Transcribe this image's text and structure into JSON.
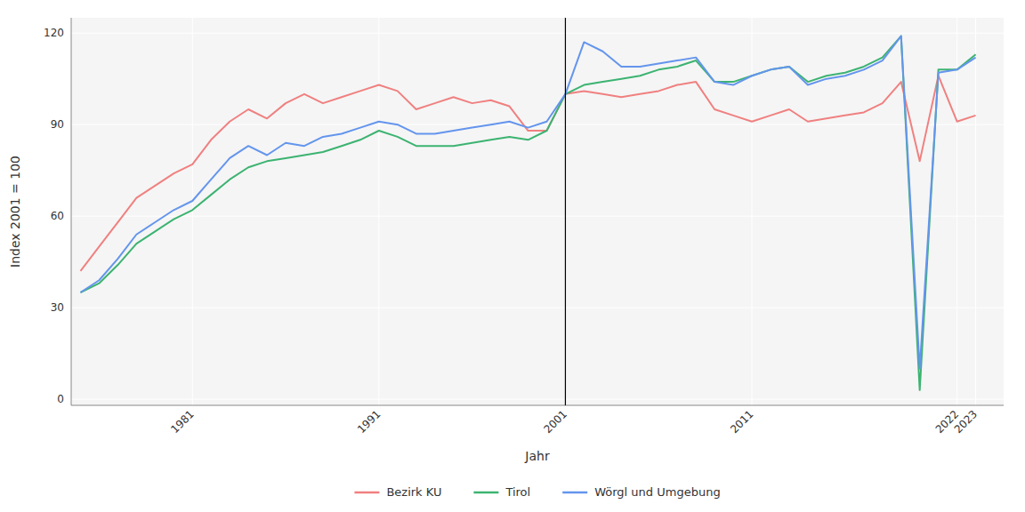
{
  "chart_data": {
    "type": "line",
    "xlabel": "Jahr",
    "ylabel": "Index 2001 = 100",
    "x": [
      1975,
      1976,
      1977,
      1978,
      1979,
      1980,
      1981,
      1982,
      1983,
      1984,
      1985,
      1986,
      1987,
      1988,
      1989,
      1990,
      1991,
      1992,
      1993,
      1994,
      1995,
      1996,
      1997,
      1998,
      1999,
      2000,
      2001,
      2002,
      2003,
      2004,
      2005,
      2006,
      2007,
      2008,
      2009,
      2010,
      2011,
      2012,
      2013,
      2014,
      2015,
      2016,
      2017,
      2018,
      2019,
      2020,
      2021,
      2022,
      2023
    ],
    "series": [
      {
        "name": "Bezirk KU",
        "color": "#F08080",
        "values": [
          42,
          50,
          58,
          66,
          70,
          74,
          77,
          85,
          91,
          95,
          92,
          97,
          100,
          97,
          99,
          101,
          103,
          101,
          95,
          97,
          99,
          97,
          98,
          96,
          88,
          88,
          100,
          101,
          100,
          99,
          100,
          101,
          103,
          104,
          95,
          93,
          91,
          93,
          95,
          91,
          92,
          93,
          94,
          97,
          104,
          78,
          106,
          91,
          93
        ]
      },
      {
        "name": "Tirol",
        "color": "#3CB371",
        "values": [
          35,
          38,
          44,
          51,
          55,
          59,
          62,
          67,
          72,
          76,
          78,
          79,
          80,
          81,
          83,
          85,
          88,
          86,
          83,
          83,
          83,
          84,
          85,
          86,
          85,
          88,
          100,
          103,
          104,
          105,
          106,
          108,
          109,
          111,
          104,
          104,
          106,
          108,
          109,
          104,
          106,
          107,
          109,
          112,
          119,
          3,
          108,
          108,
          113
        ]
      },
      {
        "name": "Wörgl und Umgebung",
        "color": "#6495ED",
        "values": [
          35,
          39,
          46,
          54,
          58,
          62,
          65,
          72,
          79,
          83,
          80,
          84,
          83,
          86,
          87,
          89,
          91,
          90,
          87,
          87,
          88,
          89,
          90,
          91,
          89,
          91,
          100,
          117,
          114,
          109,
          109,
          110,
          111,
          112,
          104,
          103,
          106,
          108,
          109,
          103,
          105,
          106,
          108,
          111,
          119,
          10,
          107,
          108,
          112
        ]
      }
    ],
    "vline_x": 2001,
    "xlim": [
      1974.5,
      2024.5
    ],
    "ylim": [
      -2,
      125
    ],
    "xticks": [
      1981,
      1991,
      2001,
      2011,
      2022,
      2023
    ],
    "yticks": [
      0,
      30,
      60,
      90,
      120
    ],
    "grid": true,
    "legend": "bottom"
  }
}
